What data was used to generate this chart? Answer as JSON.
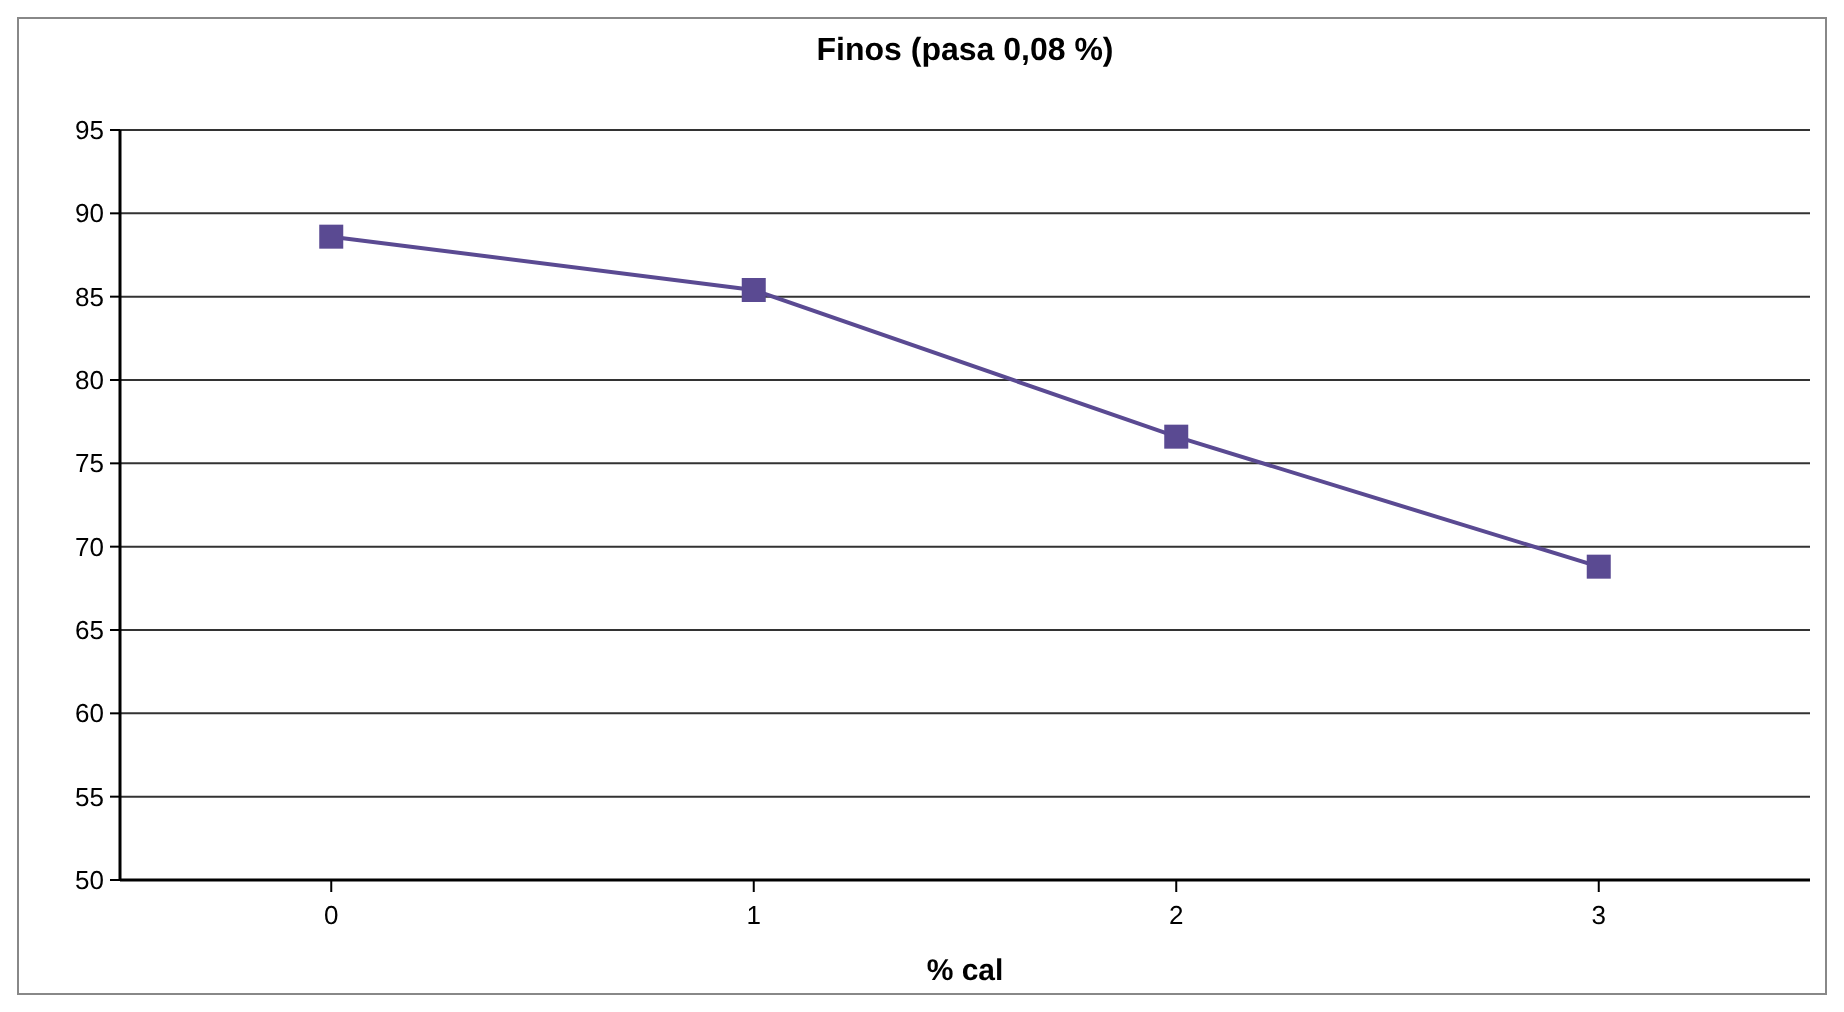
{
  "chart_data": {
    "type": "line",
    "title": "Finos (pasa 0,08 %)",
    "xlabel": "% cal",
    "x": [
      0,
      1,
      2,
      3
    ],
    "series": [
      {
        "color": "#5a4a92",
        "values": [
          88.6,
          85.4,
          76.6,
          68.8
        ]
      }
    ],
    "xlim": [
      -0.5,
      3.5
    ],
    "xticks": [
      0,
      1,
      2,
      3
    ],
    "ylim": [
      50,
      95
    ],
    "yticks": [
      50,
      55,
      60,
      65,
      70,
      75,
      80,
      85,
      90,
      95
    ],
    "grid": "y",
    "marker": "square",
    "line_style": "solid"
  }
}
